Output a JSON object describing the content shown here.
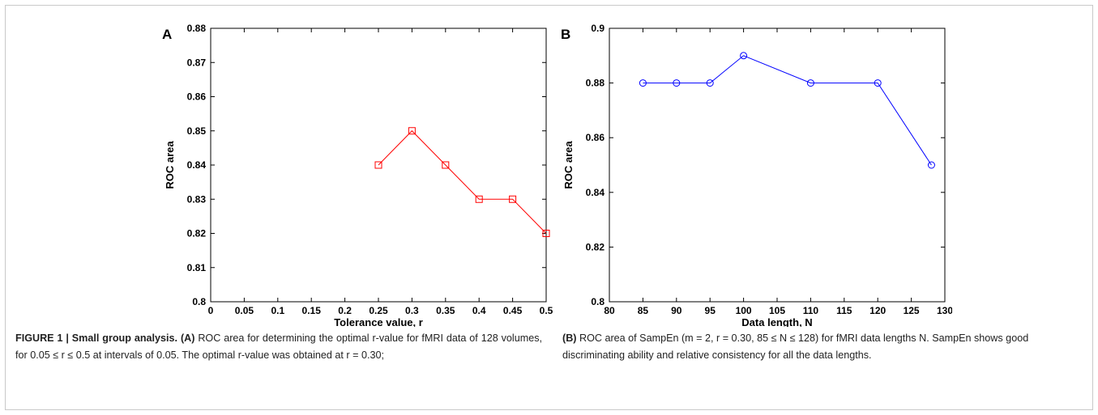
{
  "chart_data": [
    {
      "type": "line",
      "panel_label": "A",
      "xlabel": "Tolerance value, r",
      "ylabel": "ROC area",
      "xlim": [
        0,
        0.5
      ],
      "ylim": [
        0.8,
        0.88
      ],
      "xticks": [
        "0",
        "0.05",
        "0.1",
        "0.15",
        "0.2",
        "0.25",
        "0.3",
        "0.35",
        "0.4",
        "0.45",
        "0.5"
      ],
      "yticks": [
        "0.8",
        "0.81",
        "0.82",
        "0.83",
        "0.84",
        "0.85",
        "0.86",
        "0.87",
        "0.88"
      ],
      "marker": "square",
      "color": "#ff0000",
      "series": [
        {
          "x": [
            0.25,
            0.3,
            0.35,
            0.4,
            0.45,
            0.5
          ],
          "values": [
            0.84,
            0.85,
            0.84,
            0.83,
            0.83,
            0.82
          ]
        }
      ]
    },
    {
      "type": "line",
      "panel_label": "B",
      "xlabel": "Data length, N",
      "ylabel": "ROC area",
      "xlim": [
        80,
        130
      ],
      "ylim": [
        0.8,
        0.9
      ],
      "xticks": [
        "80",
        "85",
        "90",
        "95",
        "100",
        "105",
        "110",
        "115",
        "120",
        "125",
        "130"
      ],
      "yticks": [
        "0.8",
        "0.82",
        "0.84",
        "0.86",
        "0.88",
        "0.9"
      ],
      "marker": "circle",
      "color": "#0000ff",
      "series": [
        {
          "x": [
            85,
            90,
            95,
            100,
            110,
            120,
            128
          ],
          "values": [
            0.88,
            0.88,
            0.88,
            0.89,
            0.88,
            0.88,
            0.85
          ]
        }
      ]
    }
  ],
  "caption": {
    "lead": "FIGURE 1 | Small group analysis.",
    "left_ref": "(A)",
    "left_text": "ROC area for determining the optimal r-value for fMRI data of 128 volumes, for 0.05 ≤ r ≤ 0.5 at intervals of 0.05. The optimal r-value was obtained at r = 0.30;",
    "right_ref": "(B)",
    "right_text": "ROC area of SampEn (m = 2, r = 0.30, 85 ≤ N ≤ 128) for fMRI data lengths N. SampEn shows good discriminating ability and relative consistency for all the data lengths."
  }
}
